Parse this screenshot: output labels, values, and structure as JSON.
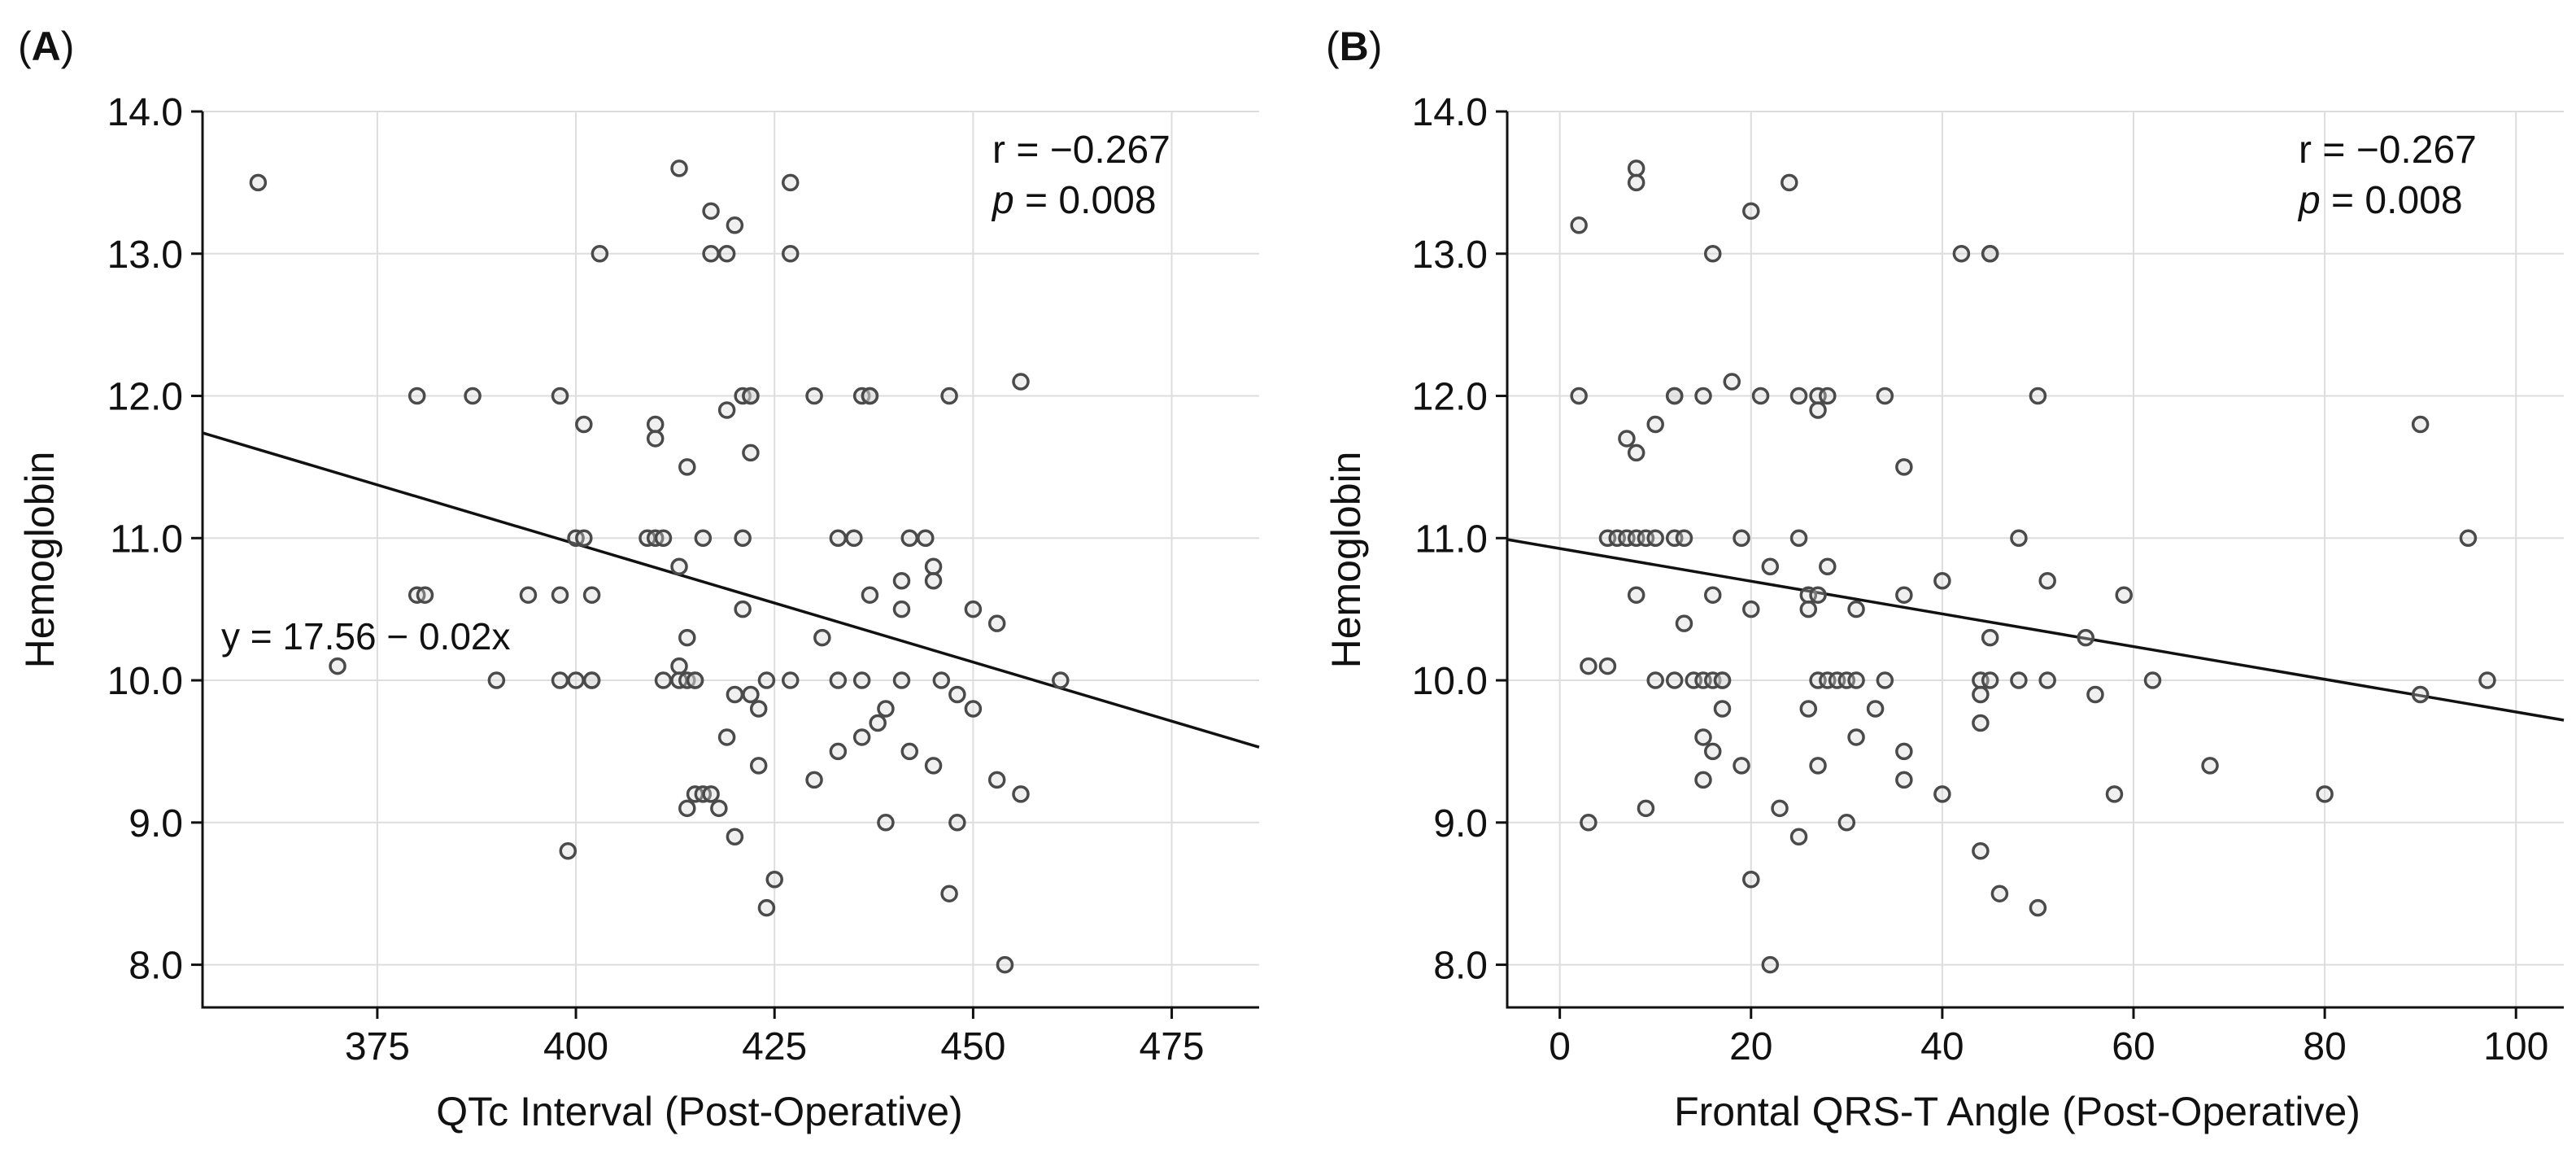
{
  "chart_data": [
    {
      "type": "scatter",
      "panel_label": "A",
      "xlabel": "QTc Interval (Post-Operative)",
      "ylabel": "Hemoglobin",
      "xlim": [
        353,
        486
      ],
      "ylim": [
        7.7,
        14.0
      ],
      "xticks": [
        375,
        400,
        425,
        450,
        475
      ],
      "yticks": [
        8.0,
        9.0,
        10.0,
        11.0,
        12.0,
        13.0,
        14.0
      ],
      "xtick_labels": [
        "375",
        "400",
        "425",
        "450",
        "475"
      ],
      "ytick_labels": [
        "8.0",
        "9.0",
        "10.0",
        "11.0",
        "12.0",
        "13.0",
        "14.0"
      ],
      "grid": true,
      "r_text": "r = −0.267",
      "p_italic": "p",
      "p_rest": " = 0.008",
      "equation": "y = 17.56 − 0.02x",
      "fit_line": {
        "x": [
          353,
          486
        ],
        "y": [
          11.74,
          9.53
        ]
      },
      "points": [
        [
          360,
          13.5
        ],
        [
          370,
          10.1
        ],
        [
          380,
          12.0
        ],
        [
          380,
          10.6
        ],
        [
          381,
          10.6
        ],
        [
          387,
          12.0
        ],
        [
          390,
          10.0
        ],
        [
          394,
          10.6
        ],
        [
          398,
          12.0
        ],
        [
          398,
          10.6
        ],
        [
          398,
          10.0
        ],
        [
          399,
          8.8
        ],
        [
          400,
          11.0
        ],
        [
          400,
          10.0
        ],
        [
          401,
          11.0
        ],
        [
          401,
          11.8
        ],
        [
          402,
          10.6
        ],
        [
          402,
          10.0
        ],
        [
          402,
          10.0
        ],
        [
          403,
          13.0
        ],
        [
          409,
          11.0
        ],
        [
          410,
          11.0
        ],
        [
          410,
          11.8
        ],
        [
          410,
          11.7
        ],
        [
          411,
          10.0
        ],
        [
          411,
          11.0
        ],
        [
          413,
          13.6
        ],
        [
          413,
          10.8
        ],
        [
          413,
          10.1
        ],
        [
          413,
          10.0
        ],
        [
          414,
          11.5
        ],
        [
          414,
          10.3
        ],
        [
          414,
          10.0
        ],
        [
          414,
          9.1
        ],
        [
          415,
          10.0
        ],
        [
          415,
          10.0
        ],
        [
          415,
          9.2
        ],
        [
          416,
          9.2
        ],
        [
          416,
          11.0
        ],
        [
          417,
          13.3
        ],
        [
          417,
          13.0
        ],
        [
          417,
          9.2
        ],
        [
          418,
          9.1
        ],
        [
          419,
          13.0
        ],
        [
          419,
          11.9
        ],
        [
          419,
          9.6
        ],
        [
          420,
          13.2
        ],
        [
          420,
          9.9
        ],
        [
          420,
          8.9
        ],
        [
          421,
          12.0
        ],
        [
          421,
          11.0
        ],
        [
          421,
          10.5
        ],
        [
          422,
          12.0
        ],
        [
          422,
          12.0
        ],
        [
          422,
          11.6
        ],
        [
          422,
          9.9
        ],
        [
          423,
          9.8
        ],
        [
          423,
          9.4
        ],
        [
          424,
          10.0
        ],
        [
          424,
          8.4
        ],
        [
          425,
          8.6
        ],
        [
          427,
          13.5
        ],
        [
          427,
          13.0
        ],
        [
          427,
          10.0
        ],
        [
          430,
          12.0
        ],
        [
          430,
          9.3
        ],
        [
          431,
          10.3
        ],
        [
          433,
          11.0
        ],
        [
          433,
          10.0
        ],
        [
          433,
          9.5
        ],
        [
          435,
          11.0
        ],
        [
          436,
          12.0
        ],
        [
          436,
          10.0
        ],
        [
          436,
          9.6
        ],
        [
          437,
          12.0
        ],
        [
          437,
          12.0
        ],
        [
          437,
          10.6
        ],
        [
          438,
          9.7
        ],
        [
          439,
          9.8
        ],
        [
          439,
          9.0
        ],
        [
          441,
          10.7
        ],
        [
          441,
          10.5
        ],
        [
          441,
          10.0
        ],
        [
          442,
          11.0
        ],
        [
          442,
          9.5
        ],
        [
          444,
          11.0
        ],
        [
          445,
          10.8
        ],
        [
          445,
          10.7
        ],
        [
          445,
          9.4
        ],
        [
          446,
          10.0
        ],
        [
          447,
          12.0
        ],
        [
          447,
          8.5
        ],
        [
          448,
          9.9
        ],
        [
          448,
          9.0
        ],
        [
          450,
          10.5
        ],
        [
          450,
          9.8
        ],
        [
          453,
          10.4
        ],
        [
          453,
          9.3
        ],
        [
          454,
          8.0
        ],
        [
          456,
          12.1
        ],
        [
          456,
          9.2
        ],
        [
          461,
          10.0
        ]
      ]
    },
    {
      "type": "scatter",
      "panel_label": "B",
      "xlabel": "Frontal QRS-T Angle (Post-Operative)",
      "ylabel": "Hemoglobin",
      "xlim": [
        -5.5,
        105
      ],
      "ylim": [
        7.7,
        14.0
      ],
      "xticks": [
        0,
        20,
        40,
        60,
        80,
        100
      ],
      "yticks": [
        8.0,
        9.0,
        10.0,
        11.0,
        12.0,
        13.0,
        14.0
      ],
      "xtick_labels": [
        "0",
        "20",
        "40",
        "60",
        "80",
        "100"
      ],
      "ytick_labels": [
        "8.0",
        "9.0",
        "10.0",
        "11.0",
        "12.0",
        "13.0",
        "14.0"
      ],
      "grid": true,
      "r_text": "r = −0.267",
      "p_italic": "p",
      "p_rest": " = 0.008",
      "fit_line": {
        "x": [
          -5.5,
          105
        ],
        "y": [
          10.99,
          9.72
        ]
      },
      "points": [
        [
          2,
          13.2
        ],
        [
          2,
          12.0
        ],
        [
          3,
          10.1
        ],
        [
          3,
          9.0
        ],
        [
          5,
          11.0
        ],
        [
          5,
          10.1
        ],
        [
          6,
          11.0
        ],
        [
          7,
          11.7
        ],
        [
          7,
          11.0
        ],
        [
          8,
          13.6
        ],
        [
          8,
          13.5
        ],
        [
          8,
          11.6
        ],
        [
          8,
          11.0
        ],
        [
          8,
          10.6
        ],
        [
          9,
          11.0
        ],
        [
          9,
          9.1
        ],
        [
          10,
          11.8
        ],
        [
          10,
          11.0
        ],
        [
          10,
          10.0
        ],
        [
          12,
          12.0
        ],
        [
          12,
          12.0
        ],
        [
          12,
          11.0
        ],
        [
          12,
          10.0
        ],
        [
          13,
          11.0
        ],
        [
          13,
          10.4
        ],
        [
          14,
          10.0
        ],
        [
          15,
          12.0
        ],
        [
          15,
          10.0
        ],
        [
          15,
          9.6
        ],
        [
          15,
          9.3
        ],
        [
          16,
          13.0
        ],
        [
          16,
          10.6
        ],
        [
          16,
          10.0
        ],
        [
          16,
          9.5
        ],
        [
          17,
          10.0
        ],
        [
          17,
          10.0
        ],
        [
          17,
          9.8
        ],
        [
          18,
          12.1
        ],
        [
          19,
          11.0
        ],
        [
          19,
          9.4
        ],
        [
          20,
          13.3
        ],
        [
          20,
          10.5
        ],
        [
          20,
          8.6
        ],
        [
          21,
          12.0
        ],
        [
          22,
          10.8
        ],
        [
          22,
          8.0
        ],
        [
          23,
          9.1
        ],
        [
          24,
          13.5
        ],
        [
          25,
          12.0
        ],
        [
          25,
          11.0
        ],
        [
          25,
          8.9
        ],
        [
          26,
          10.6
        ],
        [
          26,
          10.5
        ],
        [
          26,
          9.8
        ],
        [
          27,
          12.0
        ],
        [
          27,
          11.9
        ],
        [
          27,
          10.6
        ],
        [
          27,
          10.0
        ],
        [
          27,
          9.4
        ],
        [
          28,
          12.0
        ],
        [
          28,
          10.8
        ],
        [
          28,
          10.0
        ],
        [
          29,
          10.0
        ],
        [
          30,
          10.0
        ],
        [
          30,
          9.0
        ],
        [
          31,
          10.5
        ],
        [
          31,
          10.0
        ],
        [
          31,
          9.6
        ],
        [
          33,
          9.8
        ],
        [
          34,
          12.0
        ],
        [
          34,
          10.0
        ],
        [
          36,
          11.5
        ],
        [
          36,
          10.6
        ],
        [
          36,
          9.5
        ],
        [
          36,
          9.3
        ],
        [
          40,
          10.7
        ],
        [
          40,
          9.2
        ],
        [
          42,
          13.0
        ],
        [
          44,
          10.0
        ],
        [
          44,
          9.9
        ],
        [
          44,
          9.7
        ],
        [
          44,
          8.8
        ],
        [
          45,
          13.0
        ],
        [
          45,
          13.0
        ],
        [
          45,
          10.3
        ],
        [
          45,
          10.0
        ],
        [
          46,
          8.5
        ],
        [
          48,
          11.0
        ],
        [
          48,
          10.0
        ],
        [
          50,
          12.0
        ],
        [
          50,
          8.4
        ],
        [
          51,
          10.7
        ],
        [
          51,
          10.0
        ],
        [
          55,
          10.3
        ],
        [
          56,
          9.9
        ],
        [
          58,
          9.2
        ],
        [
          59,
          10.6
        ],
        [
          62,
          10.0
        ],
        [
          68,
          9.4
        ],
        [
          80,
          9.2
        ],
        [
          90,
          11.8
        ],
        [
          90,
          9.9
        ],
        [
          95,
          11.0
        ],
        [
          97,
          10.0
        ]
      ]
    }
  ]
}
